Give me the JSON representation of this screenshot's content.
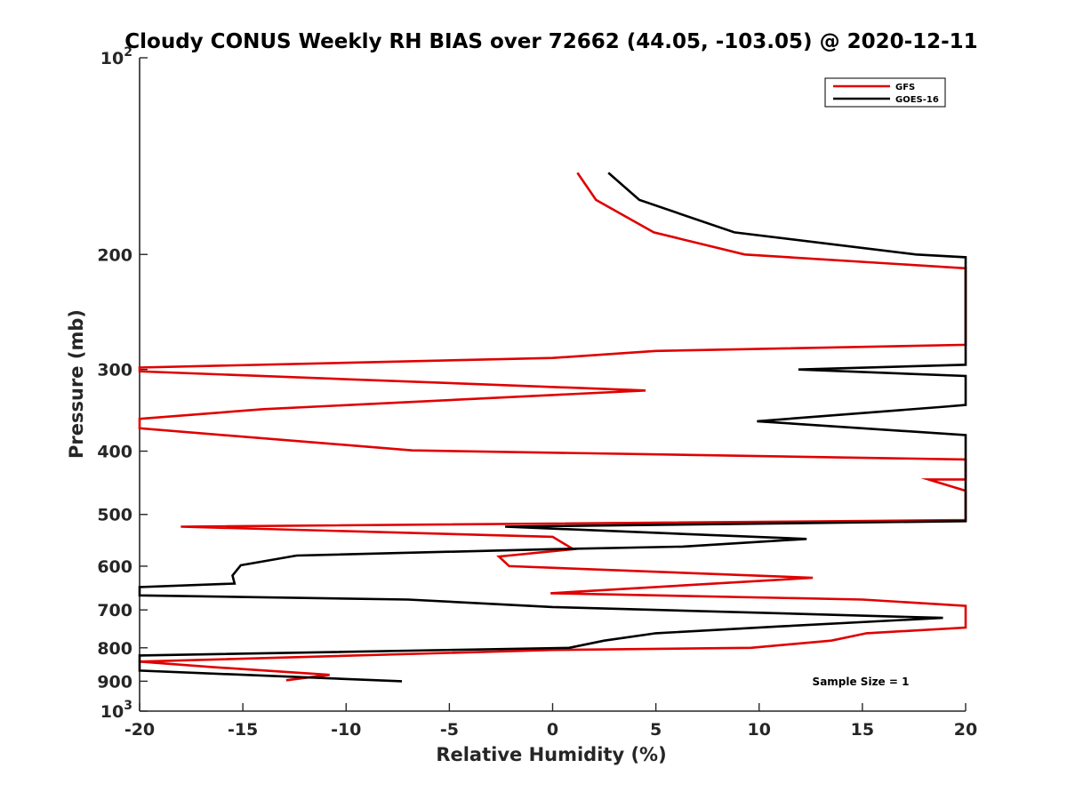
{
  "chart_data": {
    "type": "line",
    "title": "Cloudy CONUS Weekly RH BIAS over 72662 (44.05, -103.05) @ 2020-12-11",
    "xlabel": "Relative Humidity (%)",
    "ylabel": "Pressure (mb)",
    "xlim": [
      -20,
      20
    ],
    "ylim": [
      100,
      1000
    ],
    "y_scale": "log",
    "y_reversed": true,
    "grid": false,
    "legend_position": "top-right",
    "x_ticks": [
      -20,
      -15,
      -10,
      -5,
      0,
      5,
      10,
      15,
      20
    ],
    "x_tick_labels": [
      "-20",
      "-15",
      "-10",
      "-5",
      "0",
      "5",
      "10",
      "15",
      "20"
    ],
    "y_ticks": [
      {
        "value": 100,
        "base": "10",
        "exp": "2"
      },
      {
        "value": 200,
        "label": "200"
      },
      {
        "value": 300,
        "label": "300"
      },
      {
        "value": 400,
        "label": "400"
      },
      {
        "value": 500,
        "label": "500"
      },
      {
        "value": 600,
        "label": "600"
      },
      {
        "value": 700,
        "label": "700"
      },
      {
        "value": 800,
        "label": "800"
      },
      {
        "value": 900,
        "label": "900"
      },
      {
        "value": 1000,
        "base": "10",
        "exp": "3"
      }
    ],
    "annotation": "Sample Size = 1",
    "series": [
      {
        "name": "GFS",
        "color": "#e00000",
        "points": [
          [
            1.2,
            150
          ],
          [
            2.1,
            165
          ],
          [
            4.9,
            185
          ],
          [
            9.3,
            200
          ],
          [
            20.0,
            210
          ],
          [
            20.0,
            275
          ],
          [
            5.0,
            281
          ],
          [
            0.0,
            288
          ],
          [
            -20.0,
            298
          ],
          [
            -20.0,
            302
          ],
          [
            4.5,
            323
          ],
          [
            -14.0,
            345
          ],
          [
            -20.0,
            357
          ],
          [
            -20.0,
            369
          ],
          [
            -6.8,
            399
          ],
          [
            20.0,
            412
          ],
          [
            20.0,
            442
          ],
          [
            18.2,
            442
          ],
          [
            20.0,
            460
          ],
          [
            20.0,
            510
          ],
          [
            -18.0,
            522
          ],
          [
            0.0,
            541
          ],
          [
            1.0,
            565
          ],
          [
            -2.6,
            580
          ],
          [
            -2.1,
            600
          ],
          [
            12.6,
            625
          ],
          [
            -0.1,
            660
          ],
          [
            15.0,
            675
          ],
          [
            20.0,
            690
          ],
          [
            20.0,
            745
          ],
          [
            15.2,
            760
          ],
          [
            13.5,
            780
          ],
          [
            9.6,
            800
          ],
          [
            0.0,
            806
          ],
          [
            -20.0,
            840
          ],
          [
            -16.5,
            856
          ],
          [
            -10.8,
            880
          ],
          [
            -12.9,
            897
          ]
        ]
      },
      {
        "name": "GOES-16",
        "color": "#000000",
        "points": [
          [
            2.7,
            150
          ],
          [
            4.2,
            165
          ],
          [
            8.8,
            185
          ],
          [
            17.6,
            200
          ],
          [
            20.0,
            202
          ],
          [
            20.0,
            295
          ],
          [
            11.9,
            300
          ],
          [
            20.0,
            307
          ],
          [
            20.0,
            340
          ],
          [
            19.0,
            342
          ],
          [
            9.9,
            360
          ],
          [
            20.0,
            378
          ],
          [
            20.0,
            382
          ],
          [
            20.0,
            512
          ],
          [
            -2.3,
            522
          ],
          [
            12.3,
            545
          ],
          [
            6.3,
            560
          ],
          [
            0.0,
            565
          ],
          [
            -12.4,
            578
          ],
          [
            -15.1,
            598
          ],
          [
            -15.5,
            620
          ],
          [
            -15.4,
            638
          ],
          [
            -20.0,
            646
          ],
          [
            -20.0,
            665
          ],
          [
            -7.0,
            675
          ],
          [
            0.0,
            693
          ],
          [
            18.9,
            720
          ],
          [
            11.0,
            742
          ],
          [
            5.0,
            760
          ],
          [
            2.5,
            780
          ],
          [
            0.8,
            800
          ],
          [
            -20.0,
            822
          ],
          [
            -20.0,
            867
          ],
          [
            -7.3,
            900
          ]
        ]
      }
    ]
  }
}
